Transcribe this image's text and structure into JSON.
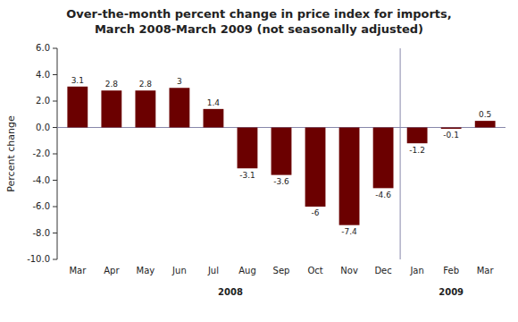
{
  "chart_data": {
    "type": "bar",
    "title": "Over-the-month percent change in price index for imports,\nMarch 2008-March 2009 (not seasonally adjusted)",
    "ylabel": "Percent change",
    "categories": [
      "Mar",
      "Apr",
      "May",
      "Jun",
      "Jul",
      "Aug",
      "Sep",
      "Oct",
      "Nov",
      "Dec",
      "Jan",
      "Feb",
      "Mar"
    ],
    "values": [
      3.1,
      2.8,
      2.8,
      3.0,
      1.4,
      -3.1,
      -3.6,
      -6.0,
      -7.4,
      -4.6,
      -1.2,
      -0.1,
      0.5
    ],
    "color": "#6B0000",
    "ylim": [
      -10.0,
      6.0
    ],
    "yticks": [
      {
        "value": -10.0,
        "label": "-10.0"
      },
      {
        "value": -8.0,
        "label": "-8.0"
      },
      {
        "value": -6.0,
        "label": "-6.0"
      },
      {
        "value": -4.0,
        "label": "-4.0"
      },
      {
        "value": -2.0,
        "label": "-2.0"
      },
      {
        "value": 0.0,
        "label": "0.0"
      },
      {
        "value": 2.0,
        "label": "2.0"
      },
      {
        "value": 4.0,
        "label": "4.0"
      },
      {
        "value": 6.0,
        "label": "6.0"
      }
    ],
    "annotations": [
      {
        "text": "2008",
        "from": 0,
        "to": 9
      },
      {
        "text": "2009",
        "from": 10,
        "to": 12
      }
    ],
    "data_labels": true,
    "grid": false
  }
}
